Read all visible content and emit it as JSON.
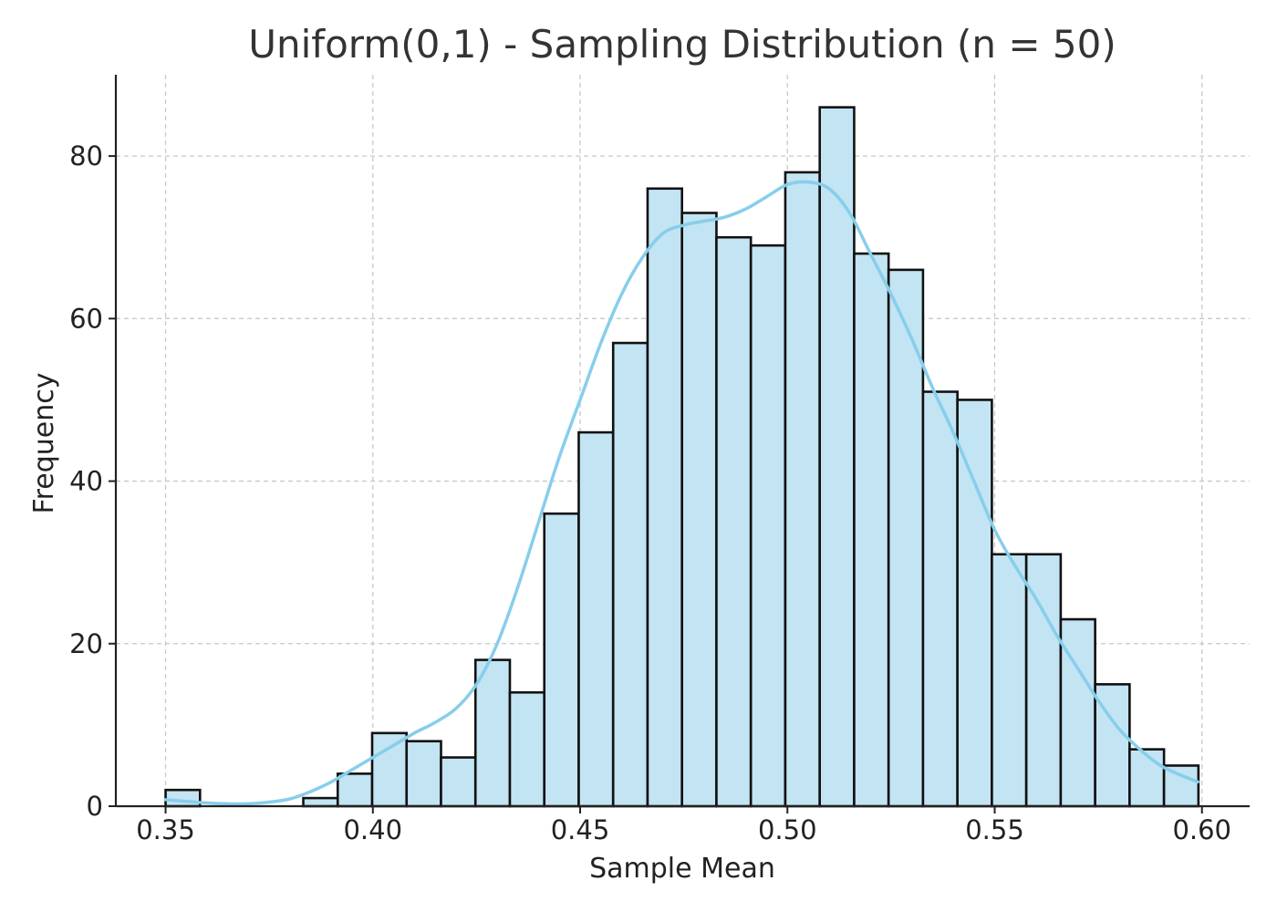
{
  "chart_data": {
    "type": "bar",
    "title": "Uniform(0,1) - Sampling Distribution (n = 50)",
    "xlabel": "Sample Mean",
    "ylabel": "Frequency",
    "xlim": [
      0.338,
      0.6115
    ],
    "ylim": [
      0,
      90
    ],
    "xticks": [
      0.35,
      0.4,
      0.45,
      0.5,
      0.55,
      0.6
    ],
    "xtick_labels": [
      "0.35",
      "0.40",
      "0.45",
      "0.50",
      "0.55",
      "0.60"
    ],
    "yticks": [
      0,
      20,
      40,
      60,
      80
    ],
    "ytick_labels": [
      "0",
      "20",
      "40",
      "60",
      "80"
    ],
    "grid": true,
    "bins": {
      "start": 0.35,
      "width": 0.008305,
      "counts": [
        2,
        0,
        0,
        0,
        1,
        4,
        9,
        8,
        6,
        18,
        14,
        36,
        46,
        57,
        76,
        73,
        70,
        69,
        78,
        86,
        68,
        66,
        51,
        50,
        31,
        31,
        23,
        15,
        7,
        5
      ]
    },
    "kde": {
      "x": [
        0.35,
        0.355,
        0.36,
        0.365,
        0.37,
        0.375,
        0.38,
        0.385,
        0.39,
        0.395,
        0.4,
        0.405,
        0.41,
        0.415,
        0.42,
        0.425,
        0.43,
        0.435,
        0.44,
        0.445,
        0.45,
        0.455,
        0.46,
        0.465,
        0.47,
        0.475,
        0.48,
        0.485,
        0.49,
        0.495,
        0.5,
        0.505,
        0.51,
        0.515,
        0.52,
        0.525,
        0.53,
        0.535,
        0.54,
        0.545,
        0.55,
        0.555,
        0.56,
        0.565,
        0.57,
        0.575,
        0.58,
        0.585,
        0.59,
        0.595,
        0.599
      ],
      "y": [
        0.8,
        0.6,
        0.4,
        0.3,
        0.3,
        0.5,
        0.9,
        1.8,
        3.0,
        4.5,
        6.0,
        7.5,
        9.0,
        10.3,
        12.0,
        15.0,
        20.0,
        27.0,
        35.0,
        43.0,
        50.0,
        57.0,
        63.0,
        67.5,
        70.5,
        71.5,
        72.0,
        72.5,
        73.5,
        75.0,
        76.5,
        76.8,
        76.0,
        73.0,
        68.0,
        63.0,
        57.5,
        51.5,
        46.0,
        40.0,
        34.0,
        29.5,
        25.5,
        21.0,
        17.0,
        13.0,
        9.5,
        7.0,
        5.0,
        3.8,
        3.0
      ]
    },
    "colors": {
      "bar_fill": "#c2e4f3",
      "bar_edge": "#111111",
      "kde_line": "#87ceeb"
    }
  }
}
